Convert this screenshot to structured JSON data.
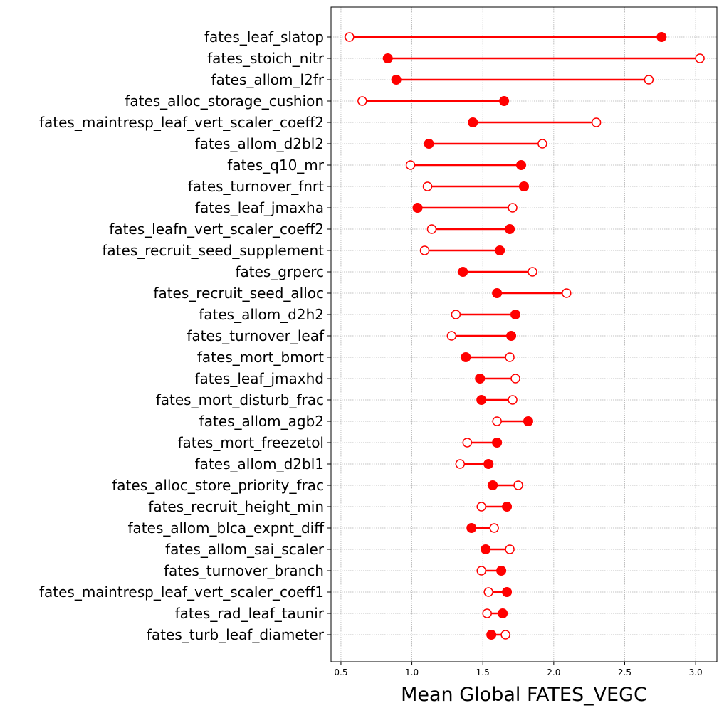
{
  "chart_data": {
    "type": "dumbbell",
    "xlabel": "Mean Global FATES_VEGC",
    "xlim": [
      0.43,
      3.15
    ],
    "xticks": [
      0.5,
      1.0,
      1.5,
      2.0,
      2.5,
      3.0
    ],
    "xtick_labels": [
      "0.5",
      "1.0",
      "1.5",
      "2.0",
      "2.5",
      "3.0"
    ],
    "grid": true,
    "color": "#ff0000",
    "markers": {
      "filled": "filled circle",
      "open": "open circle"
    },
    "categories": [
      "fates_leaf_slatop",
      "fates_stoich_nitr",
      "fates_allom_l2fr",
      "fates_alloc_storage_cushion",
      "fates_maintresp_leaf_vert_scaler_coeff2",
      "fates_allom_d2bl2",
      "fates_q10_mr",
      "fates_turnover_fnrt",
      "fates_leaf_jmaxha",
      "fates_leafn_vert_scaler_coeff2",
      "fates_recruit_seed_supplement",
      "fates_grperc",
      "fates_recruit_seed_alloc",
      "fates_allom_d2h2",
      "fates_turnover_leaf",
      "fates_mort_bmort",
      "fates_leaf_jmaxhd",
      "fates_mort_disturb_frac",
      "fates_allom_agb2",
      "fates_mort_freezetol",
      "fates_allom_d2bl1",
      "fates_alloc_store_priority_frac",
      "fates_recruit_height_min",
      "fates_allom_blca_expnt_diff",
      "fates_allom_sai_scaler",
      "fates_turnover_branch",
      "fates_maintresp_leaf_vert_scaler_coeff1",
      "fates_rad_leaf_taunir",
      "fates_turb_leaf_diameter"
    ],
    "series": [
      {
        "marker": "filled",
        "values": [
          2.76,
          0.83,
          0.89,
          1.65,
          1.43,
          1.12,
          1.77,
          1.79,
          1.04,
          1.69,
          1.62,
          1.36,
          1.6,
          1.73,
          1.7,
          1.38,
          1.48,
          1.49,
          1.82,
          1.6,
          1.54,
          1.57,
          1.67,
          1.42,
          1.52,
          1.63,
          1.67,
          1.64,
          1.56
        ]
      },
      {
        "marker": "open",
        "values": [
          0.56,
          3.03,
          2.67,
          0.65,
          2.3,
          1.92,
          0.99,
          1.11,
          1.71,
          1.14,
          1.09,
          1.85,
          2.09,
          1.31,
          1.28,
          1.69,
          1.73,
          1.71,
          1.6,
          1.39,
          1.34,
          1.75,
          1.49,
          1.58,
          1.69,
          1.49,
          1.54,
          1.53,
          1.66
        ]
      }
    ]
  }
}
